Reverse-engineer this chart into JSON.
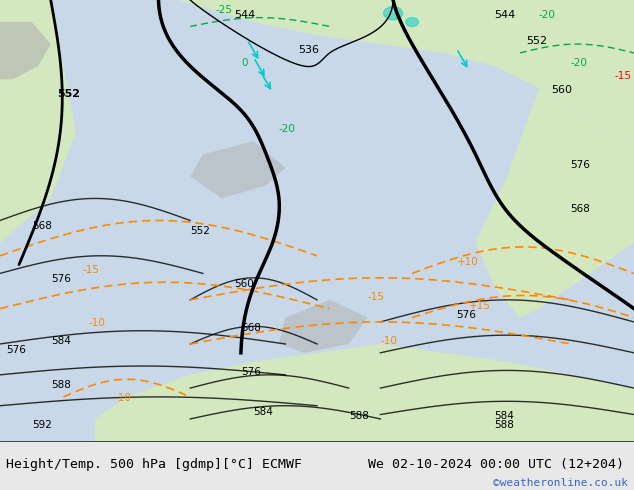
{
  "title_left": "Height/Temp. 500 hPa [gdmp][°C] ECMWF",
  "title_right": "We 02-10-2024 00:00 UTC (12+204)",
  "credit": "©weatheronline.co.uk",
  "background_color": "#c8d8e8",
  "map_bg_light": "#d4e8c0",
  "map_bg_gray": "#c0c0c0",
  "fig_width": 6.34,
  "fig_height": 4.9,
  "dpi": 100,
  "bottom_bar_color": "#e8e8e8",
  "bottom_bar_height": 0.1,
  "title_fontsize": 9.5,
  "credit_fontsize": 8,
  "credit_color": "#3366cc",
  "contour_black_color": "#000000",
  "contour_orange_color": "#ff8800",
  "contour_green_color": "#00aa44",
  "contour_cyan_color": "#00cccc",
  "contour_red_color": "#cc0000",
  "label_black_fontsize": 8,
  "label_orange_fontsize": 8,
  "label_green_fontsize": 8,
  "label_cyan_fontsize": 8,
  "contour_linewidth_thick": 2.0,
  "contour_linewidth_thin": 1.0
}
